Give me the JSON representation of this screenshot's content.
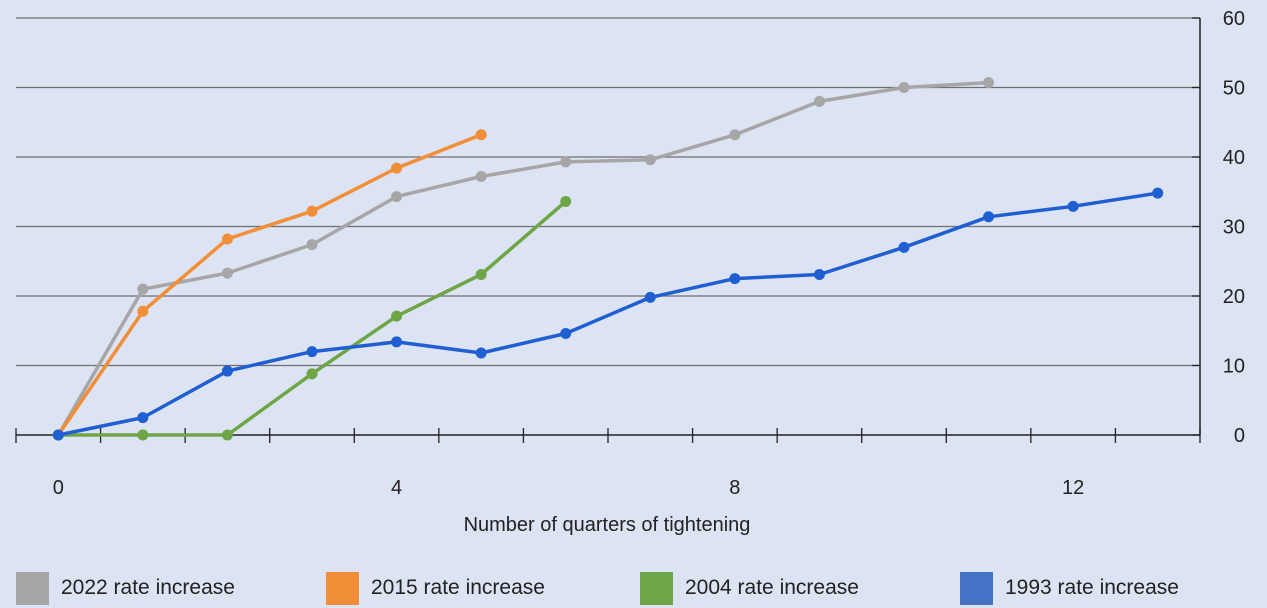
{
  "chart_data": {
    "type": "line",
    "title": "",
    "xlabel": "Number of quarters of tightening",
    "ylabel": "",
    "xlim": [
      -0.5,
      13.5
    ],
    "ylim": [
      0,
      60
    ],
    "xticks": [
      0,
      4,
      8,
      12
    ],
    "yticks": [
      0,
      10,
      20,
      30,
      40,
      50,
      60
    ],
    "y_axis_position": "right",
    "grid": "horizontal",
    "legend_position": "bottom",
    "series": [
      {
        "name": "2022 rate increase",
        "color": "#a6a6a6",
        "x": [
          0,
          1,
          2,
          3,
          4,
          5,
          6,
          7,
          8,
          9,
          10,
          11
        ],
        "y": [
          0,
          21,
          23.3,
          27.4,
          34.3,
          37.2,
          39.3,
          39.6,
          43.2,
          48,
          50,
          50.7
        ]
      },
      {
        "name": "2015 rate increase",
        "color": "#f28e37",
        "x": [
          0,
          1,
          2,
          3,
          4,
          5
        ],
        "y": [
          0,
          17.8,
          28.2,
          32.2,
          38.4,
          43.2
        ]
      },
      {
        "name": "2004 rate increase",
        "color": "#6ea546",
        "x": [
          0,
          1,
          2,
          3,
          4,
          5,
          6
        ],
        "y": [
          0,
          0,
          0,
          8.8,
          17.1,
          23.1,
          33.6
        ]
      },
      {
        "name": "1993 rate increase",
        "color": "#1f5fd1",
        "x": [
          0,
          1,
          2,
          3,
          4,
          5,
          6,
          7,
          8,
          9,
          10,
          11,
          12,
          13
        ],
        "y": [
          0,
          2.5,
          9.2,
          12,
          13.4,
          11.8,
          14.6,
          19.8,
          22.5,
          23.1,
          27,
          31.4,
          32.9,
          34.8
        ]
      }
    ]
  },
  "legend": {
    "items": [
      {
        "label": "2022 rate increase",
        "color": "#a6a6a6"
      },
      {
        "label": "2015 rate increase",
        "color": "#f28e37"
      },
      {
        "label": "2004 rate increase",
        "color": "#6ea546"
      },
      {
        "label": "1993 rate increase",
        "color": "#4472c4"
      }
    ]
  }
}
